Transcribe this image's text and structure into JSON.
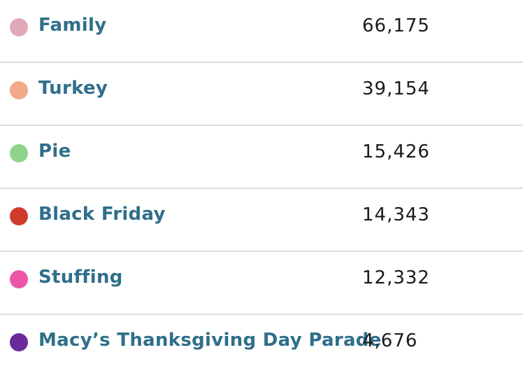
{
  "items": [
    {
      "label": "Family",
      "value": "66,175",
      "color": "#e0a9b8"
    },
    {
      "label": "Turkey",
      "value": "39,154",
      "color": "#f3a98a"
    },
    {
      "label": "Pie",
      "value": "15,426",
      "color": "#8fd48a"
    },
    {
      "label": "Black Friday",
      "value": "14,343",
      "color": "#cf3b2c"
    },
    {
      "label": "Stuffing",
      "value": "12,332",
      "color": "#ec57a6"
    },
    {
      "label": "Macy’s Thanksgiving Day Parade",
      "value": "4,676",
      "color": "#6a2a9c"
    }
  ]
}
